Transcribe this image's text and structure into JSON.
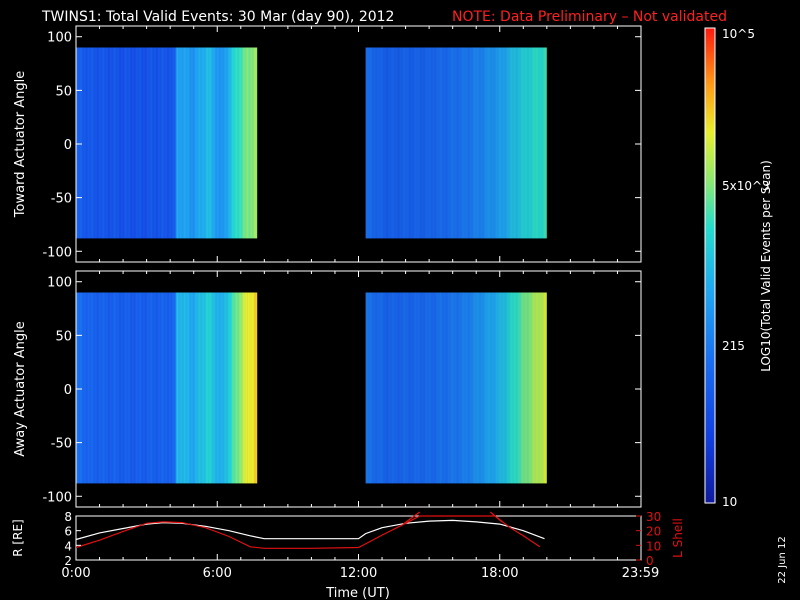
{
  "title": {
    "main": "TWINS1: Total Valid Events: 30 Mar (day  90), 2012",
    "note": "NOTE: Data Preliminary – Not validated"
  },
  "colors": {
    "note": "#ff2020",
    "orbit_l": "#e01010",
    "orbit_r": "#ffffff",
    "axes": "#ffffff",
    "background": "#000000"
  },
  "footer_date": "22 Jun 12",
  "chart_data": [
    {
      "type": "heatmap",
      "id": "toward",
      "ylabel": "Toward Actuator Angle",
      "ylim": [
        -110,
        110
      ],
      "yticks": [
        100,
        50,
        0,
        -50,
        -100
      ],
      "y_range": [
        -88,
        90
      ],
      "x_unit": "hours UT",
      "xlim": [
        0,
        24
      ],
      "blocks": [
        {
          "x": [
            0,
            7.7
          ],
          "profile": [
            [
              0,
              0.25
            ],
            [
              0.6,
              0.22
            ],
            [
              2.5,
              0.2
            ],
            [
              4.2,
              0.22
            ],
            [
              4.3,
              0.45
            ],
            [
              5.0,
              0.4
            ],
            [
              5.6,
              0.5
            ],
            [
              6.2,
              0.38
            ],
            [
              6.8,
              0.58
            ],
            [
              7.3,
              0.66
            ],
            [
              7.7,
              0.7
            ]
          ]
        },
        {
          "x": [
            12.3,
            20.0
          ],
          "profile": [
            [
              12.3,
              0.3
            ],
            [
              12.7,
              0.28
            ],
            [
              13.2,
              0.25
            ],
            [
              15.0,
              0.27
            ],
            [
              16.5,
              0.32
            ],
            [
              17.2,
              0.36
            ],
            [
              18.0,
              0.42
            ],
            [
              18.6,
              0.5
            ],
            [
              19.3,
              0.56
            ],
            [
              20.0,
              0.6
            ]
          ]
        }
      ],
      "colorbar": {
        "label": "LOG10(Total Valid Events per Scan)",
        "ticks": [
          "10",
          "215",
          "5x10^3",
          "10^5"
        ],
        "range_log10": [
          1,
          5
        ]
      }
    },
    {
      "type": "heatmap",
      "id": "away",
      "ylabel": "Away Actuator Angle",
      "ylim": [
        -110,
        110
      ],
      "yticks": [
        100,
        50,
        0,
        -50,
        -100
      ],
      "y_range": [
        -88,
        90
      ],
      "xlim": [
        0,
        24
      ],
      "blocks": [
        {
          "x": [
            0,
            7.7
          ],
          "profile": [
            [
              0,
              0.3
            ],
            [
              0.6,
              0.26
            ],
            [
              2.5,
              0.24
            ],
            [
              4.2,
              0.26
            ],
            [
              4.3,
              0.5
            ],
            [
              5.0,
              0.45
            ],
            [
              5.6,
              0.55
            ],
            [
              6.2,
              0.45
            ],
            [
              6.8,
              0.64
            ],
            [
              7.3,
              0.78
            ],
            [
              7.7,
              0.82
            ]
          ]
        },
        {
          "x": [
            12.3,
            20.0
          ],
          "profile": [
            [
              12.3,
              0.32
            ],
            [
              12.7,
              0.3
            ],
            [
              13.2,
              0.27
            ],
            [
              15.0,
              0.29
            ],
            [
              16.5,
              0.34
            ],
            [
              17.2,
              0.4
            ],
            [
              18.0,
              0.48
            ],
            [
              18.6,
              0.58
            ],
            [
              19.3,
              0.68
            ],
            [
              20.0,
              0.76
            ]
          ]
        }
      ]
    },
    {
      "type": "line",
      "id": "orbit",
      "xlabel": "Time (UT)",
      "xticks": [
        "0:00",
        "6:00",
        "12:00",
        "18:00",
        "23:59"
      ],
      "xtick_hours": [
        0,
        6,
        12,
        18,
        23.98
      ],
      "xlim": [
        0,
        24
      ],
      "left_axis": {
        "label": "R [RE]",
        "ylim": [
          2,
          8
        ],
        "ticks": [
          2,
          4,
          6,
          8
        ]
      },
      "right_axis": {
        "label": "L Shell",
        "ylim": [
          0,
          30
        ],
        "ticks": [
          0,
          10,
          20,
          30
        ]
      },
      "series": [
        {
          "axis": "left",
          "color": "#ffffff",
          "x": [
            0,
            1,
            2,
            3,
            3.7,
            4.5,
            5.5,
            6.5,
            7.4,
            8,
            10,
            12,
            12.3,
            13,
            14,
            15,
            16,
            17,
            18,
            19,
            19.9
          ],
          "y": [
            4.8,
            5.7,
            6.3,
            6.9,
            7.1,
            7.0,
            6.6,
            6.0,
            5.3,
            4.9,
            4.9,
            4.9,
            5.6,
            6.4,
            7.0,
            7.3,
            7.4,
            7.2,
            6.9,
            6.0,
            4.9
          ]
        },
        {
          "axis": "right",
          "color": "#e01010",
          "x": [
            0,
            1,
            2,
            3,
            3.7,
            4.5,
            5.5,
            6.5,
            7.4,
            8,
            10,
            12,
            12.3,
            13,
            14,
            14.6,
            17.8,
            18.4,
            19,
            19.7
          ],
          "y": [
            8.5,
            13.5,
            19.5,
            25.0,
            26.0,
            25.5,
            22.0,
            16.0,
            9.0,
            8.0,
            8.0,
            8.5,
            11.0,
            17.0,
            25.0,
            30.0,
            30.0,
            22.5,
            16.5,
            9.0
          ]
        }
      ]
    }
  ]
}
